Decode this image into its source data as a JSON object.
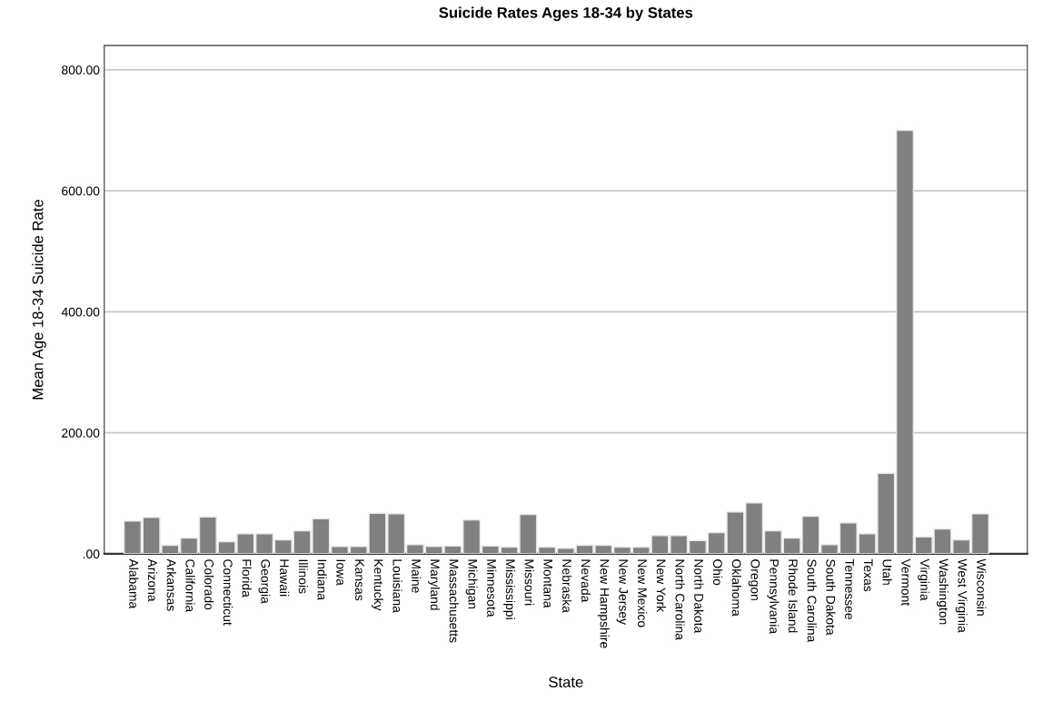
{
  "chart_data": {
    "type": "bar",
    "title": "Suicide Rates Ages 18-34 by States",
    "xlabel": "State",
    "ylabel": "Mean Age 18-34 Suicide Rate",
    "categories": [
      "Alabama",
      "Arizona",
      "Arkansas",
      "California",
      "Colorado",
      "Connecticut",
      "Florida",
      "Georgia",
      "Hawaii",
      "Illinois",
      "Indiana",
      "Iowa",
      "Kansas",
      "Kentucky",
      "Louisiana",
      "Maine",
      "Maryland",
      "Massachusetts",
      "Michigan",
      "Minnesota",
      "Mississippi",
      "Missouri",
      "Montana",
      "Nebraska",
      "Nevada",
      "New Hampshire",
      "New Jersey",
      "New Mexico",
      "New York",
      "North Carolina",
      "North Dakota",
      "Ohio",
      "Oklahoma",
      "Oregon",
      "Pennsylvania",
      "Rhode Island",
      "South Carolina",
      "South Dakota",
      "Tennessee",
      "Texas",
      "Utah",
      "Vermont",
      "Virginia",
      "Washington",
      "West Virginia",
      "Wisconsin"
    ],
    "values": [
      54,
      60,
      14,
      26,
      61,
      20,
      33,
      33,
      23,
      38,
      58,
      12,
      12,
      67,
      66,
      15,
      12,
      13,
      56,
      13,
      11,
      65,
      11,
      9,
      14,
      14,
      11,
      11,
      30,
      30,
      22,
      35,
      69,
      84,
      38,
      26,
      62,
      15,
      51,
      33,
      133,
      700,
      28,
      41,
      23,
      66
    ],
    "color": "#808080",
    "ylim": [
      0,
      840
    ],
    "yticks": [
      {
        "value": 0,
        "label": ".00"
      },
      {
        "value": 200,
        "label": "200.00"
      },
      {
        "value": 400,
        "label": "400.00"
      },
      {
        "value": 600,
        "label": "600.00"
      },
      {
        "value": 800,
        "label": "800.00"
      }
    ],
    "grid": "y",
    "legend": false
  }
}
